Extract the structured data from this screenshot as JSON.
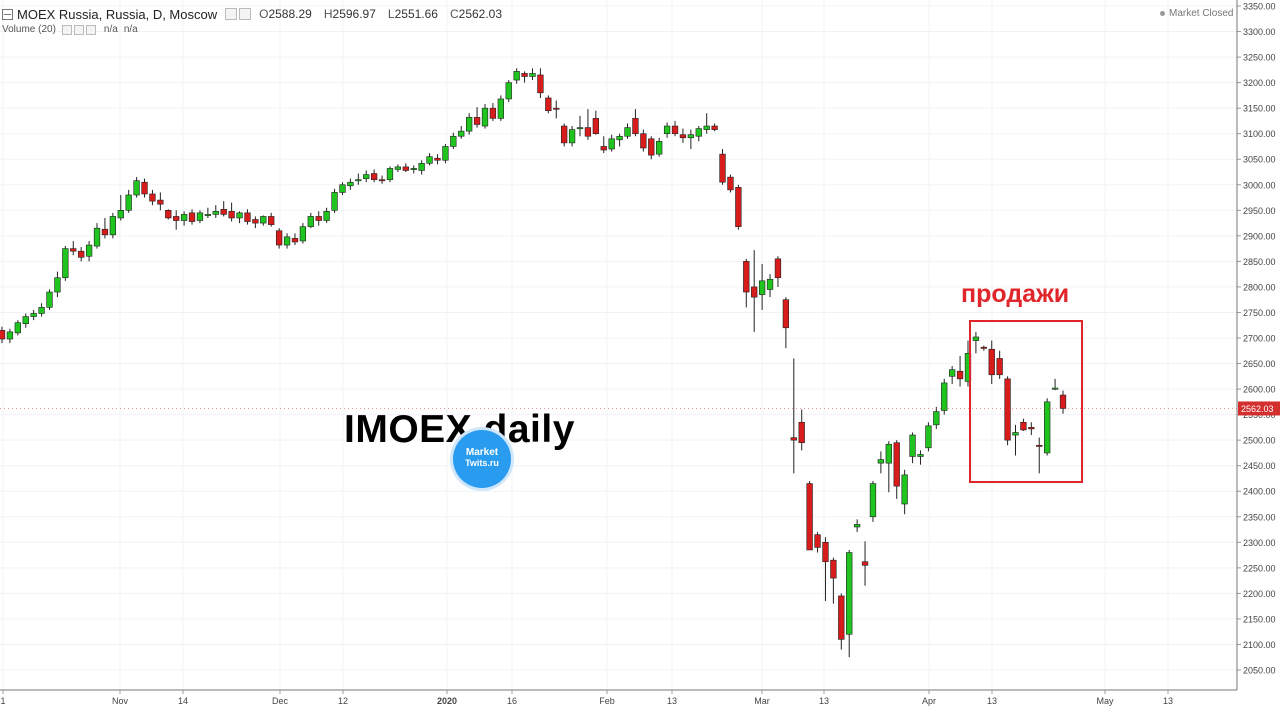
{
  "legend": {
    "title": "MOEX Russia, Russia, D, Moscow",
    "open_key": "O",
    "open": "2588.29",
    "high_key": "H",
    "high": "2596.97",
    "low_key": "L",
    "low": "2551.66",
    "close_key": "C",
    "close": "2562.03"
  },
  "volume": {
    "label": "Volume (20)",
    "v1": "n/a",
    "v2": "n/a"
  },
  "status": "Market Closed",
  "watermark": "IMOEX daily",
  "logo": {
    "line1": "Market",
    "line2": "Twits.ru"
  },
  "annotation": "продажи",
  "colors": {
    "up": "#1fc41f",
    "down": "#d81b1b",
    "last_price": "#d32f2f",
    "annotation": "#e0262a",
    "logo": "#2a9cf0"
  },
  "chart_data": {
    "type": "candlestick",
    "y_axis": {
      "min": 2050,
      "max": 3350,
      "ticks": [
        2050,
        2100,
        2150,
        2200,
        2250,
        2300,
        2350,
        2400,
        2450,
        2500,
        2550,
        2600,
        2650,
        2700,
        2750,
        2800,
        2850,
        2900,
        2950,
        3000,
        3050,
        3100,
        3150,
        3200,
        3250,
        3300,
        3350
      ],
      "last_price_label": "2562.03"
    },
    "x_labels": [
      "1",
      "Nov",
      "14",
      "Dec",
      "12",
      "2020",
      "16",
      "Feb",
      "13",
      "Mar",
      "13",
      "Apr",
      "13",
      "May",
      "13"
    ],
    "x_bold": [
      "2020"
    ],
    "grid": true,
    "candles": [
      {
        "o": 2715,
        "h": 2722,
        "l": 2690,
        "c": 2698
      },
      {
        "o": 2698,
        "h": 2718,
        "l": 2690,
        "c": 2712
      },
      {
        "o": 2710,
        "h": 2735,
        "l": 2705,
        "c": 2730
      },
      {
        "o": 2728,
        "h": 2748,
        "l": 2720,
        "c": 2742
      },
      {
        "o": 2742,
        "h": 2755,
        "l": 2735,
        "c": 2748
      },
      {
        "o": 2748,
        "h": 2768,
        "l": 2742,
        "c": 2760
      },
      {
        "o": 2760,
        "h": 2795,
        "l": 2755,
        "c": 2790
      },
      {
        "o": 2790,
        "h": 2830,
        "l": 2780,
        "c": 2818
      },
      {
        "o": 2818,
        "h": 2880,
        "l": 2812,
        "c": 2875
      },
      {
        "o": 2875,
        "h": 2890,
        "l": 2862,
        "c": 2870
      },
      {
        "o": 2870,
        "h": 2878,
        "l": 2850,
        "c": 2858
      },
      {
        "o": 2860,
        "h": 2890,
        "l": 2850,
        "c": 2882
      },
      {
        "o": 2880,
        "h": 2925,
        "l": 2875,
        "c": 2915
      },
      {
        "o": 2913,
        "h": 2935,
        "l": 2895,
        "c": 2902
      },
      {
        "o": 2902,
        "h": 2945,
        "l": 2895,
        "c": 2938
      },
      {
        "o": 2935,
        "h": 2980,
        "l": 2930,
        "c": 2950
      },
      {
        "o": 2950,
        "h": 2990,
        "l": 2945,
        "c": 2980
      },
      {
        "o": 2980,
        "h": 3015,
        "l": 2975,
        "c": 3008
      },
      {
        "o": 3005,
        "h": 3012,
        "l": 2975,
        "c": 2982
      },
      {
        "o": 2982,
        "h": 2990,
        "l": 2960,
        "c": 2968
      },
      {
        "o": 2970,
        "h": 2985,
        "l": 2950,
        "c": 2962
      },
      {
        "o": 2950,
        "h": 2952,
        "l": 2932,
        "c": 2935
      },
      {
        "o": 2938,
        "h": 2950,
        "l": 2912,
        "c": 2930
      },
      {
        "o": 2930,
        "h": 2948,
        "l": 2920,
        "c": 2942
      },
      {
        "o": 2945,
        "h": 2952,
        "l": 2922,
        "c": 2928
      },
      {
        "o": 2930,
        "h": 2950,
        "l": 2925,
        "c": 2945
      },
      {
        "o": 2940,
        "h": 2955,
        "l": 2935,
        "c": 2942
      },
      {
        "o": 2942,
        "h": 2960,
        "l": 2935,
        "c": 2948
      },
      {
        "o": 2952,
        "h": 2968,
        "l": 2938,
        "c": 2942
      },
      {
        "o": 2948,
        "h": 2965,
        "l": 2928,
        "c": 2935
      },
      {
        "o": 2935,
        "h": 2948,
        "l": 2925,
        "c": 2945
      },
      {
        "o": 2945,
        "h": 2952,
        "l": 2922,
        "c": 2928
      },
      {
        "o": 2932,
        "h": 2938,
        "l": 2915,
        "c": 2925
      },
      {
        "o": 2925,
        "h": 2940,
        "l": 2920,
        "c": 2938
      },
      {
        "o": 2938,
        "h": 2945,
        "l": 2918,
        "c": 2922
      },
      {
        "o": 2910,
        "h": 2915,
        "l": 2875,
        "c": 2882
      },
      {
        "o": 2882,
        "h": 2905,
        "l": 2875,
        "c": 2898
      },
      {
        "o": 2895,
        "h": 2905,
        "l": 2882,
        "c": 2888
      },
      {
        "o": 2890,
        "h": 2925,
        "l": 2885,
        "c": 2918
      },
      {
        "o": 2918,
        "h": 2945,
        "l": 2915,
        "c": 2938
      },
      {
        "o": 2938,
        "h": 2948,
        "l": 2920,
        "c": 2930
      },
      {
        "o": 2930,
        "h": 2955,
        "l": 2925,
        "c": 2948
      },
      {
        "o": 2950,
        "h": 2992,
        "l": 2945,
        "c": 2985
      },
      {
        "o": 2985,
        "h": 3005,
        "l": 2980,
        "c": 3000
      },
      {
        "o": 2998,
        "h": 3012,
        "l": 2990,
        "c": 3005
      },
      {
        "o": 3008,
        "h": 3022,
        "l": 3000,
        "c": 3010
      },
      {
        "o": 3012,
        "h": 3028,
        "l": 3005,
        "c": 3020
      },
      {
        "o": 3022,
        "h": 3030,
        "l": 3005,
        "c": 3010
      },
      {
        "o": 3010,
        "h": 3018,
        "l": 3002,
        "c": 3008
      },
      {
        "o": 3010,
        "h": 3036,
        "l": 3005,
        "c": 3032
      },
      {
        "o": 3030,
        "h": 3040,
        "l": 3025,
        "c": 3035
      },
      {
        "o": 3035,
        "h": 3042,
        "l": 3025,
        "c": 3028
      },
      {
        "o": 3030,
        "h": 3038,
        "l": 3022,
        "c": 3032
      },
      {
        "o": 3028,
        "h": 3048,
        "l": 3020,
        "c": 3042
      },
      {
        "o": 3042,
        "h": 3062,
        "l": 3038,
        "c": 3055
      },
      {
        "o": 3052,
        "h": 3060,
        "l": 3040,
        "c": 3048
      },
      {
        "o": 3048,
        "h": 3080,
        "l": 3042,
        "c": 3075
      },
      {
        "o": 3075,
        "h": 3102,
        "l": 3070,
        "c": 3095
      },
      {
        "o": 3095,
        "h": 3115,
        "l": 3090,
        "c": 3105
      },
      {
        "o": 3105,
        "h": 3140,
        "l": 3098,
        "c": 3132
      },
      {
        "o": 3132,
        "h": 3152,
        "l": 3112,
        "c": 3118
      },
      {
        "o": 3115,
        "h": 3158,
        "l": 3110,
        "c": 3150
      },
      {
        "o": 3150,
        "h": 3160,
        "l": 3125,
        "c": 3130
      },
      {
        "o": 3130,
        "h": 3175,
        "l": 3125,
        "c": 3168
      },
      {
        "o": 3168,
        "h": 3205,
        "l": 3162,
        "c": 3200
      },
      {
        "o": 3205,
        "h": 3228,
        "l": 3198,
        "c": 3222
      },
      {
        "o": 3218,
        "h": 3222,
        "l": 3200,
        "c": 3212
      },
      {
        "o": 3212,
        "h": 3228,
        "l": 3205,
        "c": 3218
      },
      {
        "o": 3215,
        "h": 3228,
        "l": 3170,
        "c": 3180
      },
      {
        "o": 3170,
        "h": 3175,
        "l": 3140,
        "c": 3145
      },
      {
        "o": 3150,
        "h": 3165,
        "l": 3130,
        "c": 3148
      },
      {
        "o": 3115,
        "h": 3120,
        "l": 3075,
        "c": 3082
      },
      {
        "o": 3082,
        "h": 3115,
        "l": 3075,
        "c": 3108
      },
      {
        "o": 3110,
        "h": 3135,
        "l": 3095,
        "c": 3112
      },
      {
        "o": 3112,
        "h": 3148,
        "l": 3088,
        "c": 3095
      },
      {
        "o": 3130,
        "h": 3145,
        "l": 3098,
        "c": 3100
      },
      {
        "o": 3075,
        "h": 3095,
        "l": 3062,
        "c": 3068
      },
      {
        "o": 3070,
        "h": 3098,
        "l": 3065,
        "c": 3090
      },
      {
        "o": 3088,
        "h": 3100,
        "l": 3075,
        "c": 3095
      },
      {
        "o": 3095,
        "h": 3120,
        "l": 3090,
        "c": 3112
      },
      {
        "o": 3130,
        "h": 3148,
        "l": 3095,
        "c": 3100
      },
      {
        "o": 3100,
        "h": 3108,
        "l": 3065,
        "c": 3072
      },
      {
        "o": 3090,
        "h": 3095,
        "l": 3050,
        "c": 3058
      },
      {
        "o": 3060,
        "h": 3092,
        "l": 3055,
        "c": 3085
      },
      {
        "o": 3100,
        "h": 3122,
        "l": 3092,
        "c": 3115
      },
      {
        "o": 3115,
        "h": 3125,
        "l": 3095,
        "c": 3100
      },
      {
        "o": 3098,
        "h": 3110,
        "l": 3082,
        "c": 3092
      },
      {
        "o": 3092,
        "h": 3108,
        "l": 3070,
        "c": 3098
      },
      {
        "o": 3095,
        "h": 3115,
        "l": 3085,
        "c": 3110
      },
      {
        "o": 3108,
        "h": 3140,
        "l": 3100,
        "c": 3115
      },
      {
        "o": 3115,
        "h": 3120,
        "l": 3105,
        "c": 3108
      },
      {
        "o": 3060,
        "h": 3070,
        "l": 3000,
        "c": 3005
      },
      {
        "o": 3015,
        "h": 3020,
        "l": 2985,
        "c": 2990
      },
      {
        "o": 2995,
        "h": 3000,
        "l": 2912,
        "c": 2918
      },
      {
        "o": 2850,
        "h": 2855,
        "l": 2760,
        "c": 2790
      },
      {
        "o": 2800,
        "h": 2872,
        "l": 2712,
        "c": 2780
      },
      {
        "o": 2785,
        "h": 2845,
        "l": 2755,
        "c": 2812
      },
      {
        "o": 2795,
        "h": 2825,
        "l": 2780,
        "c": 2815
      },
      {
        "o": 2855,
        "h": 2860,
        "l": 2800,
        "c": 2818
      },
      {
        "o": 2775,
        "h": 2780,
        "l": 2680,
        "c": 2720
      },
      {
        "o": 2505,
        "h": 2660,
        "l": 2435,
        "c": 2500
      },
      {
        "o": 2535,
        "h": 2560,
        "l": 2480,
        "c": 2495
      },
      {
        "o": 2415,
        "h": 2420,
        "l": 2290,
        "c": 2285
      },
      {
        "o": 2315,
        "h": 2320,
        "l": 2280,
        "c": 2290
      },
      {
        "o": 2300,
        "h": 2310,
        "l": 2185,
        "c": 2262
      },
      {
        "o": 2265,
        "h": 2270,
        "l": 2180,
        "c": 2230
      },
      {
        "o": 2195,
        "h": 2200,
        "l": 2090,
        "c": 2110
      },
      {
        "o": 2120,
        "h": 2285,
        "l": 2075,
        "c": 2280
      },
      {
        "o": 2330,
        "h": 2345,
        "l": 2320,
        "c": 2335
      },
      {
        "o": 2262,
        "h": 2302,
        "l": 2215,
        "c": 2255
      },
      {
        "o": 2350,
        "h": 2420,
        "l": 2340,
        "c": 2415
      },
      {
        "o": 2455,
        "h": 2478,
        "l": 2435,
        "c": 2462
      },
      {
        "o": 2455,
        "h": 2498,
        "l": 2398,
        "c": 2492
      },
      {
        "o": 2495,
        "h": 2500,
        "l": 2385,
        "c": 2410
      },
      {
        "o": 2375,
        "h": 2442,
        "l": 2355,
        "c": 2432
      },
      {
        "o": 2468,
        "h": 2515,
        "l": 2455,
        "c": 2510
      },
      {
        "o": 2468,
        "h": 2480,
        "l": 2452,
        "c": 2472
      },
      {
        "o": 2485,
        "h": 2535,
        "l": 2478,
        "c": 2528
      },
      {
        "o": 2530,
        "h": 2565,
        "l": 2522,
        "c": 2556
      },
      {
        "o": 2558,
        "h": 2620,
        "l": 2550,
        "c": 2612
      },
      {
        "o": 2625,
        "h": 2645,
        "l": 2610,
        "c": 2638
      },
      {
        "o": 2635,
        "h": 2665,
        "l": 2605,
        "c": 2620
      },
      {
        "o": 2615,
        "h": 2695,
        "l": 2605,
        "c": 2670
      },
      {
        "o": 2695,
        "h": 2712,
        "l": 2670,
        "c": 2702
      },
      {
        "o": 2682,
        "h": 2685,
        "l": 2675,
        "c": 2680
      },
      {
        "o": 2678,
        "h": 2695,
        "l": 2610,
        "c": 2628
      },
      {
        "o": 2660,
        "h": 2675,
        "l": 2620,
        "c": 2628
      },
      {
        "o": 2620,
        "h": 2625,
        "l": 2490,
        "c": 2500
      },
      {
        "o": 2510,
        "h": 2530,
        "l": 2470,
        "c": 2515
      },
      {
        "o": 2535,
        "h": 2542,
        "l": 2518,
        "c": 2520
      },
      {
        "o": 2525,
        "h": 2535,
        "l": 2510,
        "c": 2522
      },
      {
        "o": 2490,
        "h": 2505,
        "l": 2435,
        "c": 2488
      },
      {
        "o": 2475,
        "h": 2582,
        "l": 2470,
        "c": 2575
      },
      {
        "o": 2600,
        "h": 2620,
        "l": 2598,
        "c": 2602
      },
      {
        "o": 2588.29,
        "h": 2596.97,
        "l": 2551.66,
        "c": 2562.03
      }
    ]
  }
}
